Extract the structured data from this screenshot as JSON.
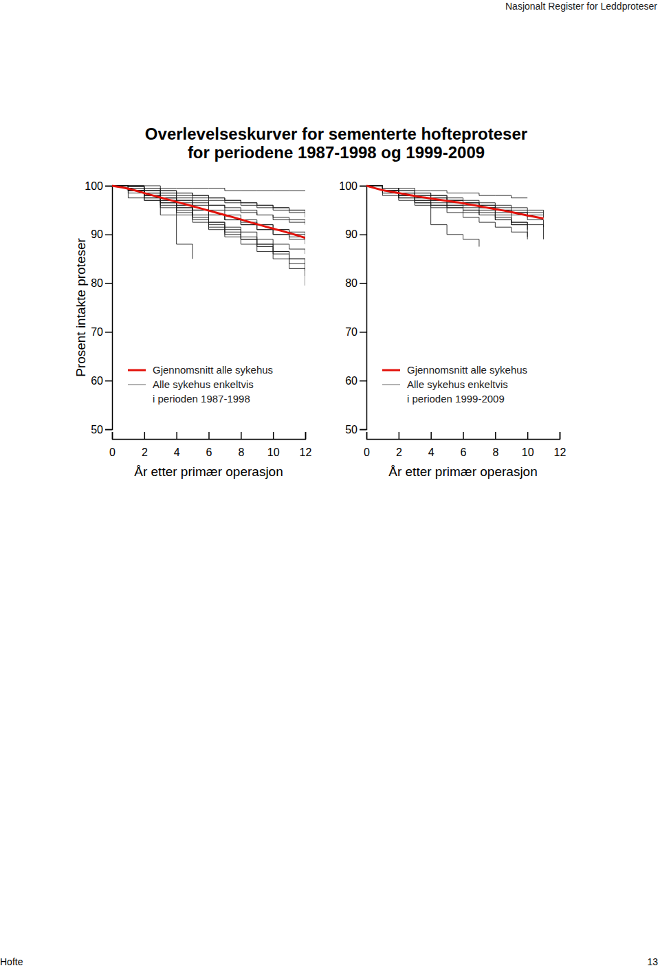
{
  "page": {
    "header": "Nasjonalt Register for Leddproteser",
    "title": [
      "Overlevelseskurver for sementerte hofteproteser",
      "for periodene 1987-1998 og 1999-2009"
    ],
    "footer": "Hofte",
    "page_number": "13"
  },
  "chart_data": [
    {
      "type": "line",
      "y_label": "Prosent intakte proteser",
      "x_label": "År etter primær operasjon",
      "annotation": "i perioden 1987-1998",
      "x": [
        0,
        1,
        2,
        3,
        4,
        5,
        6,
        7,
        8,
        9,
        10,
        11,
        12
      ],
      "xlim": [
        0,
        12
      ],
      "xticks": [
        0,
        2,
        4,
        6,
        8,
        10,
        12
      ],
      "ylim": [
        50,
        100
      ],
      "yticks": [
        50,
        60,
        70,
        80,
        90,
        100
      ],
      "grid": false,
      "legend": "lower left",
      "series": [
        {
          "name": "Gjennomsnitt alle sykehus",
          "color": "#e3120b",
          "line_style": "solid",
          "values": [
            100,
            99.4,
            98.5,
            97.6,
            96.7,
            95.8,
            94.9,
            94.0,
            93.1,
            92.1,
            91.2,
            90.3,
            89.3
          ]
        },
        {
          "name": "Alle sykehus enkeltvis",
          "color": "#1a1a1a",
          "line_style": "step",
          "values": [
            100,
            100,
            100,
            99.5,
            99.5,
            99.5,
            99.5,
            99,
            99,
            99,
            99,
            99,
            99
          ]
        },
        {
          "color": "#1a1a1a",
          "line_style": "step",
          "values": [
            100,
            99.8,
            99.5,
            99,
            98.5,
            98,
            97.5,
            97,
            96.5,
            96,
            95.5,
            95,
            94.5
          ]
        },
        {
          "color": "#1a1a1a",
          "line_style": "step",
          "values": [
            100,
            99.5,
            99,
            98,
            97,
            96.5,
            96,
            95,
            94.5,
            94,
            93,
            92.5,
            92
          ]
        },
        {
          "color": "#1a1a1a",
          "line_style": "step",
          "values": [
            100,
            99,
            98,
            97,
            96,
            95,
            94,
            93,
            92,
            91,
            90,
            89,
            88
          ]
        },
        {
          "color": "#1a1a1a",
          "line_style": "step",
          "values": [
            100,
            99,
            97.5,
            96,
            94.5,
            93,
            91.5,
            90,
            89,
            88,
            86.5,
            85,
            84
          ]
        },
        {
          "color": "#1a1a1a",
          "line_style": "step",
          "values": [
            100,
            98.5,
            97,
            95.5,
            94,
            92.5,
            91,
            89.5,
            88,
            86.5,
            85,
            83,
            81.5
          ]
        },
        {
          "color": "#1a1a1a",
          "line_style": "step",
          "values": [
            100,
            99,
            98,
            96.5,
            95,
            93.5,
            92,
            90.5,
            89,
            87.5,
            86,
            84,
            82.5
          ]
        },
        {
          "color": "#1a1a1a",
          "line_style": "step",
          "values": [
            100,
            100,
            99,
            98.5,
            98,
            97.5,
            97,
            96.5,
            96,
            95.5,
            95,
            94.5,
            93.5
          ]
        },
        {
          "color": "#1a1a1a",
          "line_style": "step",
          "values": [
            100,
            99.5,
            98.5,
            97.5,
            96.5,
            95,
            94,
            93,
            92,
            91,
            90,
            89.5,
            89
          ]
        },
        {
          "color": "#1a1a1a",
          "line_style": "step",
          "values": [
            100,
            97.5,
            97.5,
            97.5,
            96,
            95,
            94,
            93,
            92.5,
            92,
            91,
            90,
            89.5
          ]
        },
        {
          "color": "#1a1a1a",
          "line_style": "step",
          "values": [
            100,
            99,
            97,
            94,
            88,
            85,
            null,
            null,
            null,
            null,
            null,
            null,
            null
          ]
        },
        {
          "color": "#1a1a1a",
          "line_style": "step",
          "values": [
            100,
            99.5,
            99,
            98.5,
            97.5,
            97,
            96,
            95.5,
            95,
            94,
            93.5,
            93,
            92.5
          ]
        },
        {
          "color": "#1a1a1a",
          "line_style": "step",
          "values": [
            100,
            99,
            98,
            96.5,
            95.5,
            94,
            92.5,
            91.5,
            90.5,
            89,
            88,
            87,
            86
          ]
        },
        {
          "color": "#1a1a1a",
          "line_style": "step",
          "values": [
            100,
            99.5,
            98.5,
            97,
            95.5,
            94,
            92.5,
            91,
            89.5,
            88,
            86.5,
            85,
            79.5
          ]
        },
        {
          "color": "#1a1a1a",
          "line_style": "step",
          "values": [
            100,
            100,
            99.5,
            99,
            98.5,
            98,
            97.5,
            97,
            96.5,
            96,
            95.5,
            95,
            95
          ]
        },
        {
          "color": "#1a1a1a",
          "line_style": "step",
          "values": [
            100,
            99,
            98.5,
            97.5,
            97,
            96,
            95,
            94,
            93,
            92,
            91,
            90.5,
            90
          ]
        }
      ]
    },
    {
      "type": "line",
      "x_label": "År etter primær operasjon",
      "annotation": "i perioden 1999-2009",
      "x": [
        0,
        1,
        2,
        3,
        4,
        5,
        6,
        7,
        8,
        9,
        10,
        11,
        12
      ],
      "xlim": [
        0,
        12
      ],
      "xticks": [
        0,
        2,
        4,
        6,
        8,
        10,
        12
      ],
      "ylim": [
        50,
        100
      ],
      "yticks": [
        50,
        60,
        70,
        80,
        90,
        100
      ],
      "grid": false,
      "legend": "lower left",
      "series": [
        {
          "name": "Gjennomsnitt alle sykehus",
          "color": "#e3120b",
          "line_style": "solid",
          "values": [
            100,
            99.1,
            98.5,
            97.9,
            97.4,
            96.9,
            96.4,
            95.8,
            95.2,
            94.6,
            93.9,
            93.3,
            null
          ]
        },
        {
          "name": "Alle sykehus enkeltvis",
          "color": "#1a1a1a",
          "line_style": "step",
          "values": [
            100,
            99.5,
            99.5,
            99,
            99,
            98.5,
            98.5,
            98,
            98,
            97.5,
            97.5,
            null,
            null
          ]
        },
        {
          "color": "#1a1a1a",
          "line_style": "step",
          "values": [
            100,
            99,
            98.5,
            98,
            97.5,
            97,
            96.5,
            96,
            95.5,
            95,
            94.5,
            94,
            null
          ]
        },
        {
          "color": "#1a1a1a",
          "line_style": "step",
          "values": [
            100,
            99,
            98,
            97,
            96,
            95.5,
            95,
            94,
            93,
            92,
            91,
            null,
            null
          ]
        },
        {
          "color": "#1a1a1a",
          "line_style": "step",
          "values": [
            100,
            98.5,
            97.5,
            96.5,
            95.5,
            94.5,
            93.5,
            92.5,
            91.5,
            90.5,
            89,
            null,
            null
          ]
        },
        {
          "color": "#1a1a1a",
          "line_style": "step",
          "values": [
            100,
            99,
            98,
            96,
            92,
            90,
            89,
            87.5,
            null,
            null,
            null,
            null,
            null
          ]
        },
        {
          "color": "#1a1a1a",
          "line_style": "step",
          "values": [
            100,
            99.5,
            99,
            98.5,
            98,
            97.5,
            97,
            96.5,
            96,
            95.5,
            95,
            94.5,
            null
          ]
        },
        {
          "color": "#1a1a1a",
          "line_style": "step",
          "values": [
            100,
            98.5,
            97,
            96.5,
            96,
            95.5,
            94.5,
            94,
            93,
            92.5,
            92,
            null,
            null
          ]
        },
        {
          "color": "#1a1a1a",
          "line_style": "step",
          "values": [
            100,
            99,
            98.5,
            97.5,
            97,
            96,
            95,
            94.5,
            93.5,
            92.5,
            92,
            91.5,
            null
          ]
        },
        {
          "color": "#1a1a1a",
          "line_style": "step",
          "values": [
            100,
            98,
            97.5,
            97,
            96.5,
            96,
            95.5,
            95,
            94.5,
            94,
            93.5,
            null,
            null
          ]
        },
        {
          "color": "#1a1a1a",
          "line_style": "step",
          "values": [
            100,
            99.5,
            98.5,
            98,
            97.5,
            97,
            96.5,
            96,
            95,
            94.5,
            93,
            89,
            null
          ]
        },
        {
          "color": "#1a1a1a",
          "line_style": "step",
          "values": [
            100,
            99.5,
            99,
            98.5,
            98,
            97,
            96.5,
            95.5,
            94,
            92,
            89.5,
            null,
            null
          ]
        },
        {
          "color": "#1a1a1a",
          "line_style": "step",
          "values": [
            100,
            99,
            98,
            97.5,
            97,
            96.5,
            96,
            95.5,
            95,
            94.5,
            94,
            93.5,
            null
          ]
        }
      ]
    }
  ]
}
